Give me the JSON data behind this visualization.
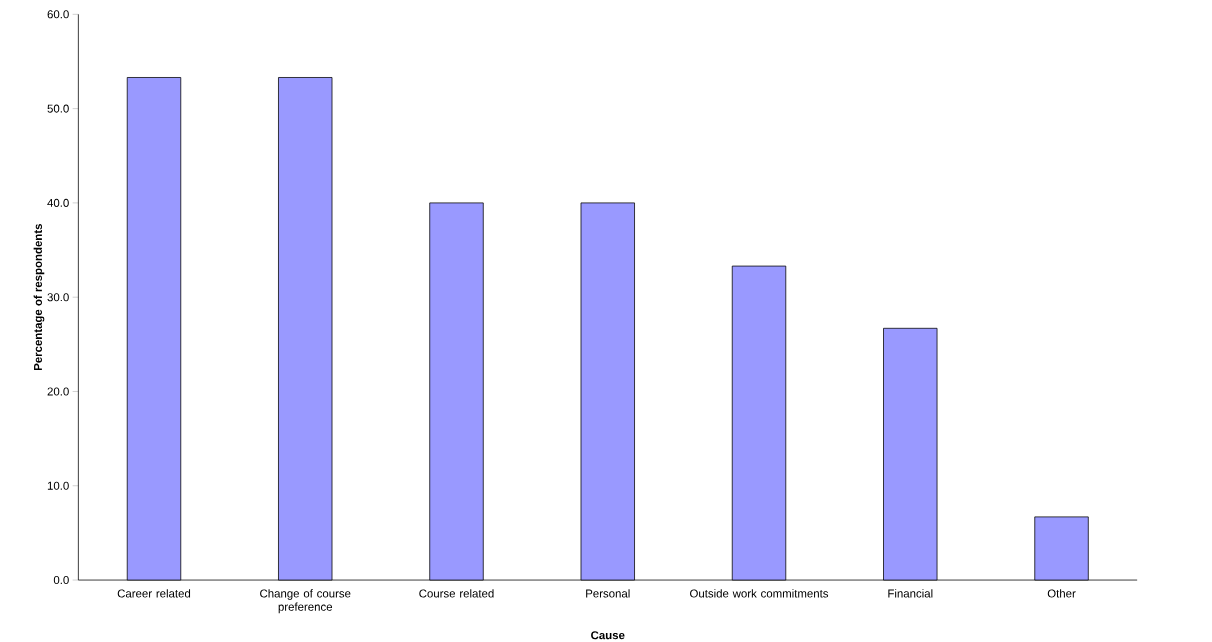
{
  "chart_data": {
    "type": "bar",
    "xlabel": "Cause",
    "ylabel": "Percentage of respondents",
    "categories": [
      "Career related",
      "Change of course preference",
      "Course related",
      "Personal",
      "Outside work commitments",
      "Financial",
      "Other"
    ],
    "values": [
      53.3,
      53.3,
      40.0,
      40.0,
      33.3,
      26.7,
      6.7
    ],
    "color": "#9999ff",
    "ylim": [
      0,
      60
    ],
    "yticks": [
      {
        "value": 0,
        "label": "0.0"
      },
      {
        "value": 10,
        "label": "10.0"
      },
      {
        "value": 20,
        "label": "20.0"
      },
      {
        "value": 30,
        "label": "30.0"
      },
      {
        "value": 40,
        "label": "40.0"
      },
      {
        "value": 50,
        "label": "50.0"
      },
      {
        "value": 60,
        "label": "60.0"
      }
    ]
  }
}
